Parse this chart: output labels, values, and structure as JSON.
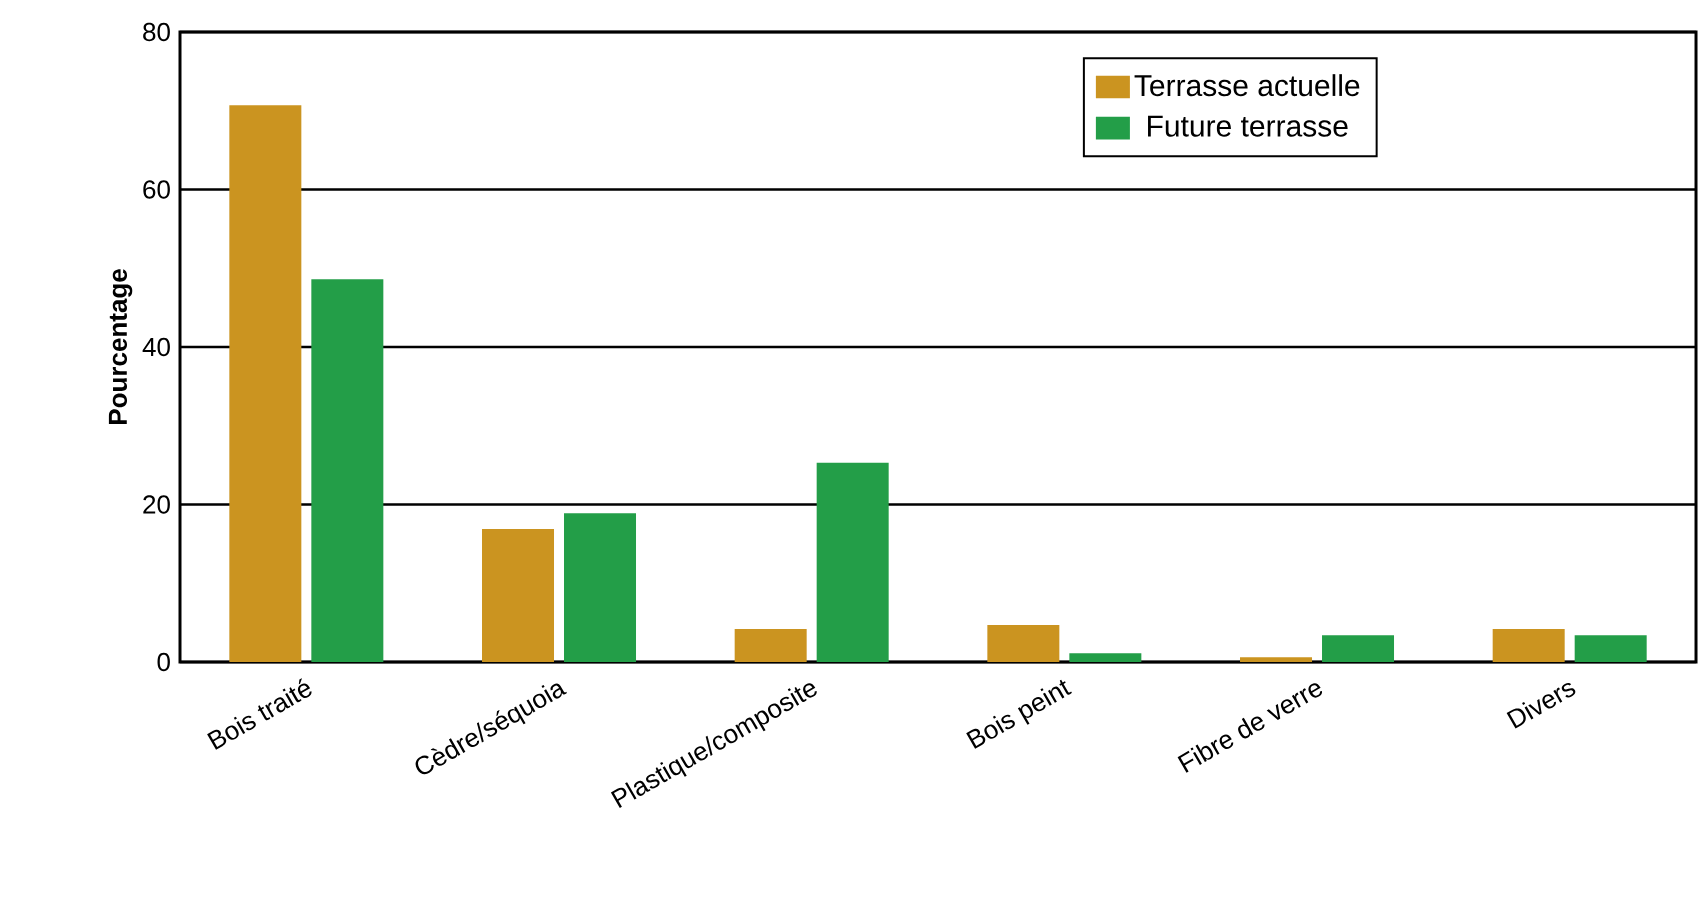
{
  "chart_data": {
    "type": "bar",
    "ylabel": "**Pourcentage**",
    "categories": [
      "Bois traité",
      "Cèdre/séquoia",
      "Plastique/composite",
      "Bois peint",
      "Fibre de verre",
      "Divers"
    ],
    "series": [
      {
        "name": "Terrasse actuelle",
        "color": "#cb9420",
        "values": [
          70.7,
          16.9,
          4.2,
          4.7,
          0.6,
          4.2
        ]
      },
      {
        "name": "Future terrasse",
        "color": "#239e48",
        "values": [
          48.6,
          18.9,
          25.3,
          1.1,
          3.4,
          3.4
        ]
      }
    ],
    "ylim": [
      0,
      80
    ],
    "yticks": [
      0,
      20,
      40,
      60,
      80
    ],
    "grid": "y",
    "legend": "top right"
  }
}
